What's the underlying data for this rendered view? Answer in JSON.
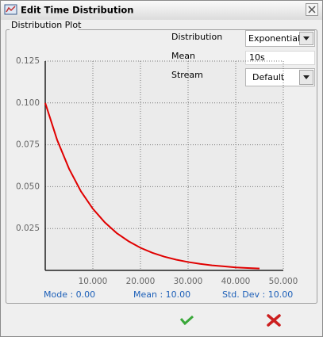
{
  "window": {
    "title": "Edit Time Distribution"
  },
  "group": {
    "title": "Distribution Plot"
  },
  "fields": {
    "distribution": {
      "label": "Distribution",
      "value": "Exponential"
    },
    "mean": {
      "label": "Mean",
      "value": "10s"
    },
    "stream": {
      "label": "Stream",
      "value": "Default"
    }
  },
  "chart_data": {
    "type": "line",
    "x": [
      0,
      2.5,
      5,
      7.5,
      10,
      12.5,
      15,
      17.5,
      20,
      22.5,
      25,
      27.5,
      30,
      32.5,
      35,
      37.5,
      40,
      42.5,
      45
    ],
    "series": [
      {
        "color": "#e00000",
        "values": [
          0.1,
          0.0779,
          0.0607,
          0.0472,
          0.0368,
          0.0287,
          0.0223,
          0.0174,
          0.0135,
          0.0105,
          0.0082,
          0.0064,
          0.005,
          0.0039,
          0.003,
          0.0024,
          0.0018,
          0.0014,
          0.0011
        ]
      }
    ],
    "xlim": [
      0,
      50
    ],
    "ylim": [
      0,
      0.125
    ],
    "xticks": [
      {
        "value": 10,
        "label": "10.000"
      },
      {
        "value": 20,
        "label": "20.000"
      },
      {
        "value": 30,
        "label": "30.000"
      },
      {
        "value": 40,
        "label": "40.000"
      },
      {
        "value": 50,
        "label": "50.000"
      }
    ],
    "yticks": [
      0.025,
      {
        "value": 0.05,
        "label": "0.050"
      },
      0.075,
      {
        "value": 0.1,
        "label": "0.100"
      },
      0.125
    ],
    "grid": true
  },
  "stats": {
    "mode": "Mode : 0.00",
    "mean": "Mean : 10.00",
    "std_dev": "Std. Dev : 10.00"
  }
}
